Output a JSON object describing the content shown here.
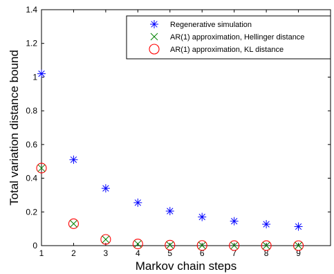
{
  "chart_data": {
    "type": "scatter",
    "title": "",
    "xlabel": "Markov chain steps",
    "ylabel": "Total variation distance bound",
    "xlim": [
      1,
      10
    ],
    "ylim": [
      0,
      1.4
    ],
    "x_ticks": [
      "1",
      "2",
      "3",
      "4",
      "5",
      "6",
      "7",
      "8",
      "9"
    ],
    "y_ticks": [
      "0",
      "0.2",
      "0.4",
      "0.6",
      "0.8",
      "1",
      "1.2",
      "1.4"
    ],
    "grid": false,
    "legend_position": "top-right",
    "series": [
      {
        "name": "Regenerative simulation",
        "marker": "asterisk",
        "color": "#0000ff",
        "x": [
          1,
          2,
          3,
          4,
          5,
          6,
          7,
          8,
          9
        ],
        "values": [
          1.02,
          0.51,
          0.34,
          0.255,
          0.205,
          0.17,
          0.145,
          0.127,
          0.113
        ]
      },
      {
        "name": "AR(1) approximation, Hellinger distance",
        "marker": "x",
        "color": "#008000",
        "x": [
          1,
          2,
          3,
          4,
          5,
          6,
          7,
          8,
          9
        ],
        "values": [
          0.46,
          0.13,
          0.037,
          0.01,
          0.003,
          0.001,
          0.0003,
          0.0001,
          0.0
        ]
      },
      {
        "name": "AR(1) approximation, KL distance",
        "marker": "circle",
        "color": "#ff0000",
        "x": [
          1,
          2,
          3,
          4,
          5,
          6,
          7,
          8,
          9
        ],
        "values": [
          0.46,
          0.13,
          0.037,
          0.01,
          0.003,
          0.001,
          0.0003,
          0.0001,
          0.0
        ]
      }
    ]
  }
}
